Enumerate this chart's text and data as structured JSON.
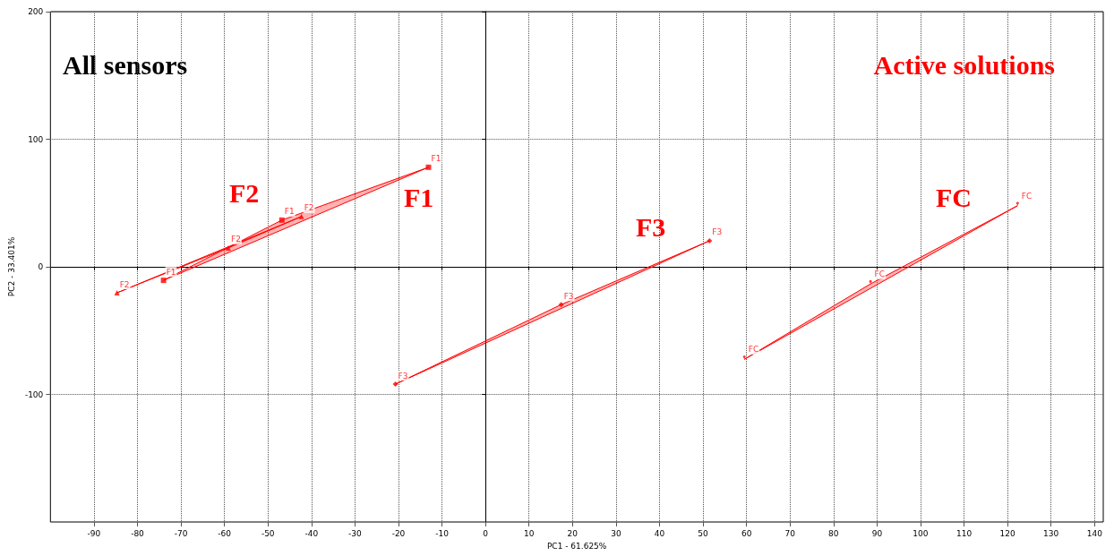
{
  "chart_data": {
    "type": "scatter",
    "xlabel": "PC1 - 61.625%",
    "ylabel": "PC2 - 33.401%",
    "xlim": [
      -100,
      142
    ],
    "xticks": [
      -90,
      -80,
      -70,
      -60,
      -50,
      -40,
      -30,
      -20,
      -10,
      0,
      10,
      20,
      30,
      40,
      50,
      60,
      70,
      80,
      90,
      100,
      110,
      120,
      130,
      140
    ],
    "ylim": [
      -200,
      200
    ],
    "yticks": [
      -100,
      0,
      100,
      200
    ],
    "grid": true,
    "annotations": [
      "All sensors",
      "Active solutions",
      "F2",
      "F1",
      "F3",
      "FC"
    ],
    "series": [
      {
        "name": "F1",
        "color": "#ff0000",
        "marker": "square",
        "x": [
          -13.1,
          -46.8,
          -74
        ],
        "values": [
          78,
          36.6,
          -10.6
        ]
      },
      {
        "name": "F2",
        "color": "#ff0000",
        "marker": "triangle",
        "x": [
          -84.7,
          -59.1,
          -42.3
        ],
        "values": [
          -20.4,
          14.8,
          39.4
        ]
      },
      {
        "name": "F3",
        "color": "#ff0000",
        "marker": "diamond",
        "x": [
          -20.7,
          17.4,
          51.5
        ],
        "values": [
          -92,
          -29.6,
          20.4
        ]
      },
      {
        "name": "FC",
        "color": "#ff0000",
        "marker": "star",
        "x": [
          59.5,
          88.5,
          122.3
        ],
        "values": [
          -72.5,
          -13.4,
          47.9
        ]
      }
    ]
  }
}
